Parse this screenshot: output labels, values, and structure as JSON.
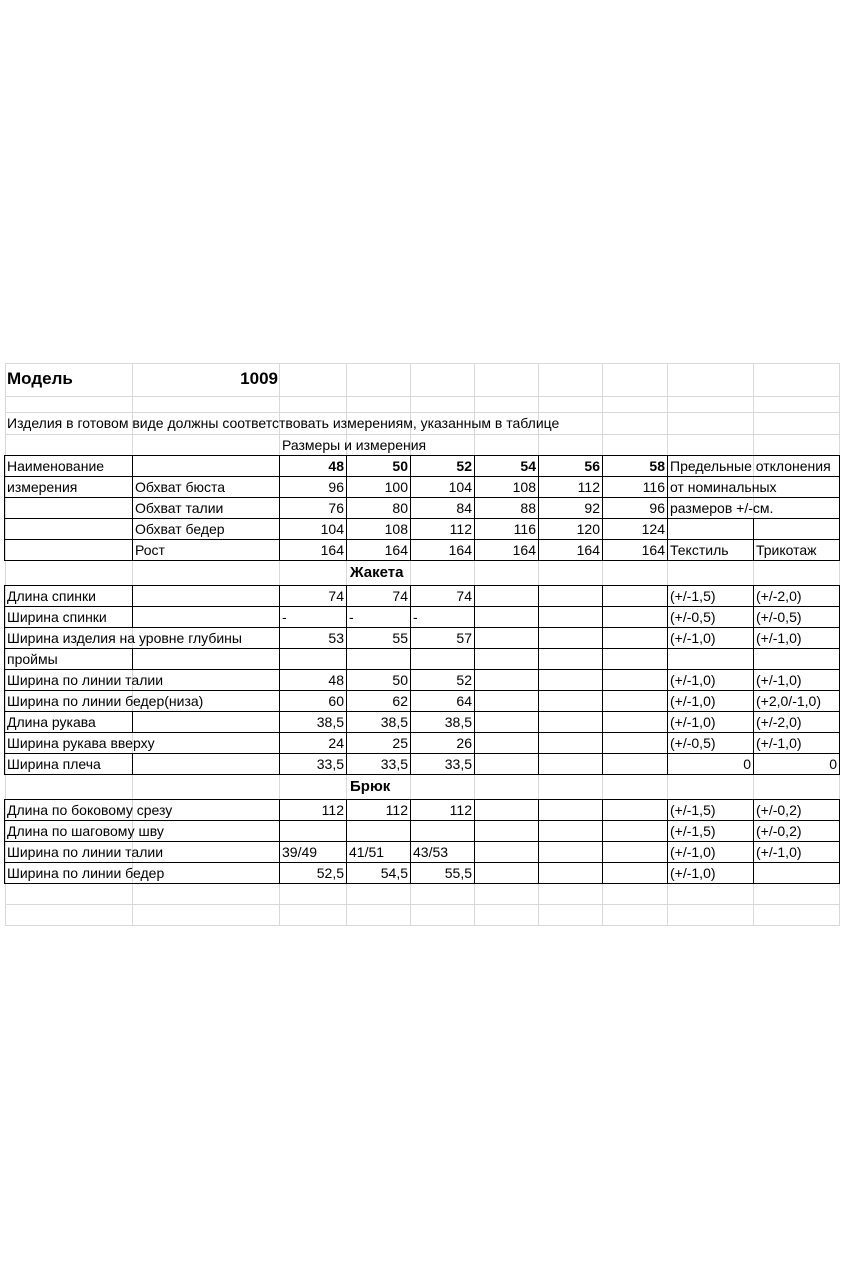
{
  "model": {
    "label": "Модель",
    "number": "1009"
  },
  "instruction": "Изделия в готовом виде должны соответствовать измерениям, указанным в таблице",
  "sizes_caption": "Размеры и измерения",
  "header": {
    "name_line1": "Наименование",
    "name_line2": "измерения",
    "sizes": [
      "48",
      "50",
      "52",
      "54",
      "56",
      "58"
    ],
    "tolerance_line1": "Предельные отклонения",
    "tolerance_line2": "от номинальных",
    "tolerance_line3": "размеров +/-см.",
    "textile": "Текстиль",
    "knit": "Трикотаж"
  },
  "body_measurements": [
    {
      "name": "Обхват бюста",
      "values": [
        "96",
        "100",
        "104",
        "108",
        "112",
        "116"
      ]
    },
    {
      "name": "Обхват талии",
      "values": [
        "76",
        "80",
        "84",
        "88",
        "92",
        "96"
      ]
    },
    {
      "name": "Обхват бедер",
      "values": [
        "104",
        "108",
        "112",
        "116",
        "120",
        "124"
      ]
    },
    {
      "name": "Рост",
      "values": [
        "164",
        "164",
        "164",
        "164",
        "164",
        "164"
      ]
    }
  ],
  "jacket": {
    "title": "Жакета",
    "rows": [
      {
        "name": "Длина спинки",
        "values": [
          "74",
          "74",
          "74",
          "",
          "",
          ""
        ],
        "textile": "(+/-1,5)",
        "knit": "(+/-2,0)"
      },
      {
        "name": "Ширина спинки",
        "values": [
          "-",
          "-",
          "-",
          "",
          "",
          ""
        ],
        "textile": "(+/-0,5)",
        "knit": "(+/-0,5)"
      },
      {
        "name": "Ширина изделия на уровне глубины",
        "values": [
          "53",
          "55",
          "57",
          "",
          "",
          ""
        ],
        "textile": "(+/-1,0)",
        "knit": "(+/-1,0)"
      },
      {
        "name": "проймы",
        "values": [
          "",
          "",
          "",
          "",
          "",
          ""
        ],
        "textile": "",
        "knit": ""
      },
      {
        "name": "Ширина по линии талии",
        "values": [
          "48",
          "50",
          "52",
          "",
          "",
          ""
        ],
        "textile": "(+/-1,0)",
        "knit": "(+/-1,0)"
      },
      {
        "name": "Ширина по линии бедер(низа)",
        "values": [
          "60",
          "62",
          "64",
          "",
          "",
          ""
        ],
        "textile": "(+/-1,0)",
        "knit": "(+2,0/-1,0)"
      },
      {
        "name": "Длина рукава",
        "values": [
          "38,5",
          "38,5",
          "38,5",
          "",
          "",
          ""
        ],
        "textile": "(+/-1,0)",
        "knit": "(+/-2,0)"
      },
      {
        "name": "Ширина рукава вверху",
        "values": [
          "24",
          "25",
          "26",
          "",
          "",
          ""
        ],
        "textile": "(+/-0,5)",
        "knit": "(+/-1,0)"
      },
      {
        "name": "Ширина плеча",
        "values": [
          "33,5",
          "33,5",
          "33,5",
          "",
          "",
          ""
        ],
        "textile": "0",
        "knit": "0"
      }
    ]
  },
  "trousers": {
    "title": "Брюк",
    "rows": [
      {
        "name": "Длина по боковому срезу",
        "values": [
          "112",
          "112",
          "112",
          "",
          "",
          ""
        ],
        "textile": "(+/-1,5)",
        "knit": "(+/-0,2)"
      },
      {
        "name": "Длина по шаговому шву",
        "values": [
          "",
          "",
          "",
          "",
          "",
          ""
        ],
        "textile": "(+/-1,5)",
        "knit": "(+/-0,2)"
      },
      {
        "name": "Ширина по линии талии",
        "values": [
          "39/49",
          "41/51",
          "43/53",
          "",
          "",
          ""
        ],
        "textile": "(+/-1,0)",
        "knit": "(+/-1,0)"
      },
      {
        "name": "Ширина по линии бедер",
        "values": [
          "52,5",
          "54,5",
          "55,5",
          "",
          "",
          ""
        ],
        "textile": "(+/-1,0)",
        "knit": ""
      }
    ]
  }
}
